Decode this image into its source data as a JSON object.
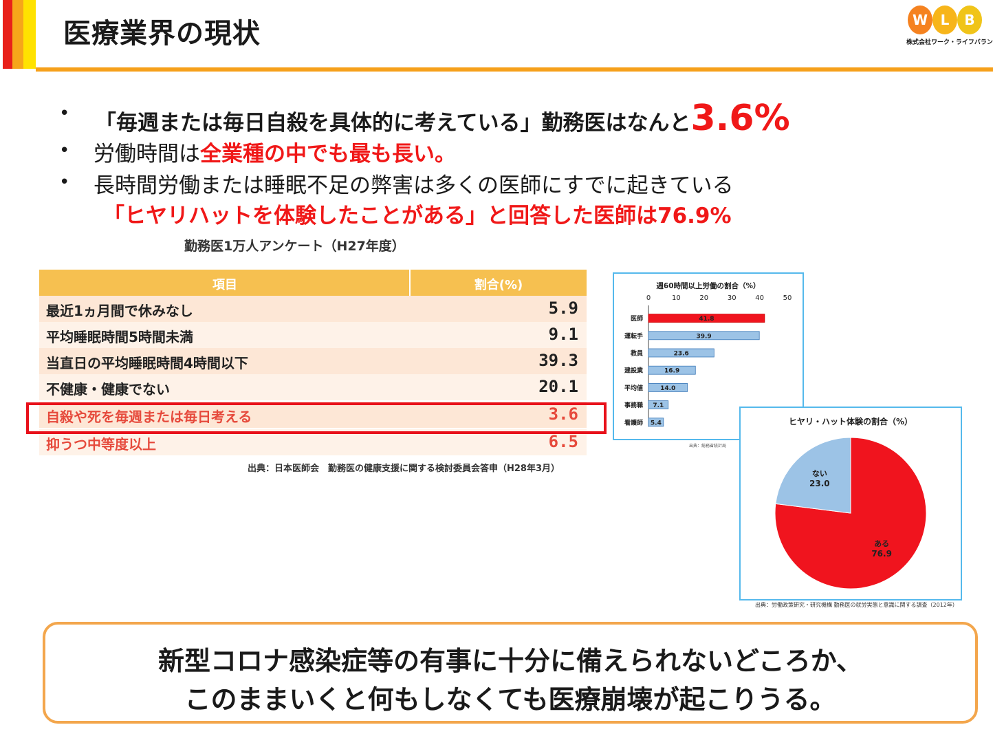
{
  "header": {
    "title": "医療業界の現状",
    "logo": {
      "letters": [
        "W",
        "L",
        "B"
      ],
      "colors": [
        "#f58220",
        "#f7b51a",
        "#f0c419"
      ],
      "company": "株式会社ワーク・ライフバランス"
    }
  },
  "bullets": {
    "b1_text": "「毎週または毎日自殺を具体的に考えている」勤務医はなんと",
    "b1_value": "3.6%",
    "b2_prefix": "労働時間は",
    "b2_highlight": "全業種の中でも最も長い。",
    "b3_text": "長時間労働または睡眠不足の弊害は多くの医師にすでに起きている",
    "b3_highlight": "「ヒヤリハットを体験したことがある」と回答した医師は76.9%",
    "marker": "•"
  },
  "survey": {
    "title": "勤務医1万人アンケート（H27年度）",
    "header_item": "項目",
    "header_ratio": "割合(%)",
    "rows": [
      {
        "label": "最近1ヵ月間で休みなし",
        "value": "5.9"
      },
      {
        "label": "平均睡眠時間5時間未満",
        "value": "9.1"
      },
      {
        "label": "当直日の平均睡眠時間4時間以下",
        "value": "39.3"
      },
      {
        "label": "不健康・健康でない",
        "value": "20.1"
      },
      {
        "label": "自殺や死を毎週または毎日考える",
        "value": "3.6"
      },
      {
        "label": "抑うつ中等度以上",
        "value": "6.5"
      }
    ],
    "source": "出典：日本医師会　勤務医の健康支援に関する検討委員会答申（H28年3月）"
  },
  "chart_data": [
    {
      "type": "bar",
      "title": "週60時間以上労働の割合（%）",
      "categories": [
        "医師",
        "運転手",
        "教員",
        "建設業",
        "平均値",
        "事務職",
        "看護師"
      ],
      "values": [
        41.8,
        39.9,
        23.6,
        16.9,
        14.0,
        7.1,
        5.4
      ],
      "value_labels": [
        "41.8",
        "39.9",
        "23.6",
        "16.9",
        "14.0",
        "7.1",
        "5.4"
      ],
      "xlim": [
        0,
        50
      ],
      "ticks": [
        "0",
        "10",
        "20",
        "30",
        "40",
        "50"
      ],
      "highlight_color": "#f0141e",
      "bar_color": "#9cc3e6",
      "source": "出典：総務省統計局"
    },
    {
      "type": "pie",
      "title": "ヒヤリ・ハット体験の割合（%）",
      "slices": [
        {
          "label": "ある",
          "value": 76.9,
          "value_label": "76.9",
          "color": "#f0141e"
        },
        {
          "label": "ない",
          "value": 23.0,
          "value_label": "23.0",
          "color": "#9cc3e6"
        }
      ],
      "source": "出典：労働政策研究・研究機構 勤務医の就労実態と意識に関する調査（2012年）"
    }
  ],
  "conclusion": {
    "line1": "新型コロナ感染症等の有事に十分に備えられないどころか、",
    "line2": "このままいくと何もしなくても医療崩壊が起こりうる。"
  }
}
